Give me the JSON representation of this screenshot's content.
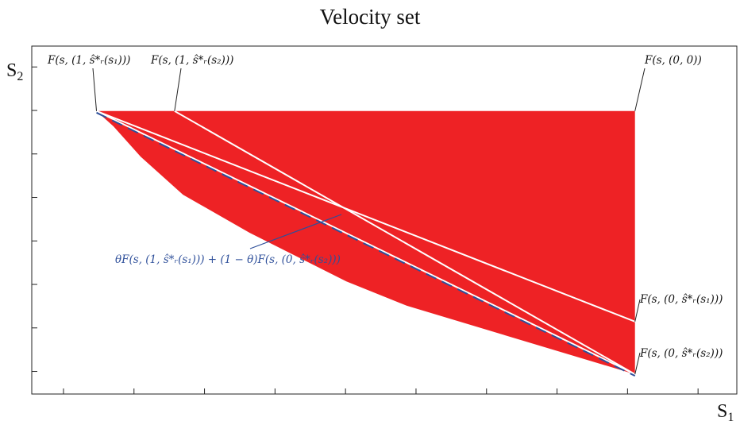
{
  "chart_data": {
    "type": "area",
    "title": "Velocity set",
    "xlabel": "S",
    "xlabel_sub": "1",
    "ylabel": "S",
    "ylabel_sub": "2",
    "xlim": [
      0,
      1
    ],
    "ylim": [
      0,
      1
    ],
    "grid": false,
    "x_ticks": [
      0.045,
      0.145,
      0.245,
      0.345,
      0.445,
      0.545,
      0.645,
      0.745,
      0.845,
      0.945
    ],
    "y_ticks": [
      0.065,
      0.19,
      0.315,
      0.44,
      0.565,
      0.69,
      0.815,
      0.94
    ],
    "points": {
      "F10": {
        "x": 0.107,
        "y": 0.93,
        "label": "F(s, (1, ŝ*ᵣ(s₁)))"
      },
      "F1s2": {
        "x": 0.236,
        "y": 0.93,
        "label": "F(s, (1, ŝ*ᵣ(s₂)))"
      },
      "F00": {
        "x": 0.997,
        "y": 0.93,
        "label": "F(s, (0, 0))"
      },
      "F0s1": {
        "x": 0.997,
        "y": 0.238,
        "label": "F(s, (0, ŝ*ᵣ(s₁)))"
      },
      "F0s2": {
        "x": 0.997,
        "y": 0.065,
        "label": "F(s, (0, ŝ*ᵣ(s₂)))"
      }
    },
    "region": {
      "color": "#ee2225",
      "boundary": [
        [
          0.107,
          0.93
        ],
        [
          0.997,
          0.93
        ],
        [
          0.997,
          0.065
        ],
        [
          0.62,
          0.29
        ],
        [
          0.52,
          0.37
        ],
        [
          0.36,
          0.53
        ],
        [
          0.25,
          0.655
        ],
        [
          0.18,
          0.78
        ],
        [
          0.135,
          0.88
        ],
        [
          0.107,
          0.93
        ]
      ]
    },
    "white_lines": [
      {
        "from": "F10",
        "to": "F0s1"
      },
      {
        "from": "F1s2",
        "to": "F0s2"
      },
      {
        "from": "F10",
        "to": "F0s2"
      }
    ],
    "dashed_line": {
      "from": [
        0.107,
        0.93
      ],
      "to": [
        0.997,
        0.065
      ],
      "color": "#2e4f9a",
      "label": "θF(s, (1, ŝ*ᵣ(s₁))) + (1 − θ)F(s, (0, ŝ*ᵣ(s₂)))"
    }
  }
}
